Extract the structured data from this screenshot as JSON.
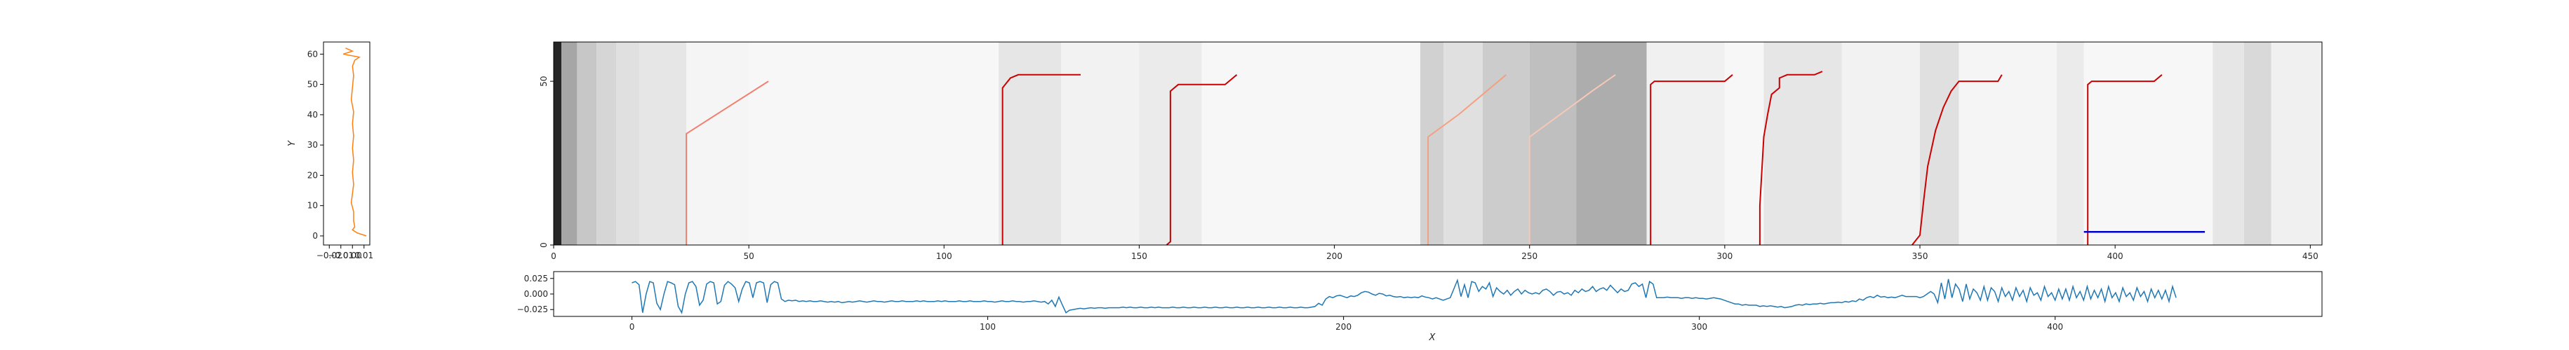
{
  "chart_data": [
    {
      "panel": "left-profile",
      "type": "line",
      "ylabel": "Y",
      "xlabel": "",
      "xlim": [
        -0.025,
        0.015
      ],
      "ylim": [
        -3,
        64
      ],
      "xticks": [
        -0.02,
        -0.01,
        0.0,
        0.01
      ],
      "xtick_labels": [
        "−0.02",
        "−0.01",
        "0.00",
        "0.01"
      ],
      "yticks": [
        0,
        10,
        20,
        30,
        40,
        50,
        60
      ],
      "color": "#ff7f0e",
      "points": [
        [
          0.012,
          0
        ],
        [
          0.004,
          1
        ],
        [
          0.0,
          2
        ],
        [
          0.002,
          3
        ],
        [
          0.001,
          5
        ],
        [
          0.001,
          8
        ],
        [
          -0.001,
          11
        ],
        [
          0.0,
          14
        ],
        [
          0.001,
          17
        ],
        [
          0.0,
          21
        ],
        [
          0.001,
          25
        ],
        [
          0.0,
          29
        ],
        [
          0.001,
          33
        ],
        [
          0.0,
          37
        ],
        [
          0.001,
          41
        ],
        [
          -0.001,
          45
        ],
        [
          0.0,
          49
        ],
        [
          0.001,
          53
        ],
        [
          0.0,
          56
        ],
        [
          0.002,
          58
        ],
        [
          0.006,
          59
        ],
        [
          -0.008,
          60
        ],
        [
          0.0,
          61
        ],
        [
          -0.006,
          62
        ]
      ]
    },
    {
      "panel": "main-heatmap",
      "type": "heatmap",
      "xlabel": "",
      "ylabel": "",
      "xlim": [
        0,
        453
      ],
      "ylim": [
        0,
        62
      ],
      "xticks": [
        0,
        50,
        100,
        150,
        200,
        250,
        300,
        350,
        400,
        450
      ],
      "yticks": [
        0,
        50
      ],
      "colormap": "greys",
      "bands": [
        {
          "x0": 0,
          "x1": 2,
          "v": 0.85
        },
        {
          "x0": 2,
          "x1": 6,
          "v": 0.35
        },
        {
          "x0": 6,
          "x1": 11,
          "v": 0.22
        },
        {
          "x0": 11,
          "x1": 16,
          "v": 0.16
        },
        {
          "x0": 16,
          "x1": 22,
          "v": 0.12
        },
        {
          "x0": 22,
          "x1": 34,
          "v": 0.1
        },
        {
          "x0": 34,
          "x1": 50,
          "v": 0.04
        },
        {
          "x0": 50,
          "x1": 114,
          "v": 0.03
        },
        {
          "x0": 114,
          "x1": 130,
          "v": 0.1
        },
        {
          "x0": 130,
          "x1": 150,
          "v": 0.05
        },
        {
          "x0": 150,
          "x1": 166,
          "v": 0.08
        },
        {
          "x0": 166,
          "x1": 222,
          "v": 0.03
        },
        {
          "x0": 222,
          "x1": 228,
          "v": 0.18
        },
        {
          "x0": 228,
          "x1": 238,
          "v": 0.12
        },
        {
          "x0": 238,
          "x1": 250,
          "v": 0.2
        },
        {
          "x0": 250,
          "x1": 262,
          "v": 0.25
        },
        {
          "x0": 262,
          "x1": 280,
          "v": 0.32
        },
        {
          "x0": 280,
          "x1": 300,
          "v": 0.06
        },
        {
          "x0": 300,
          "x1": 310,
          "v": 0.03
        },
        {
          "x0": 310,
          "x1": 330,
          "v": 0.1
        },
        {
          "x0": 330,
          "x1": 350,
          "v": 0.05
        },
        {
          "x0": 350,
          "x1": 360,
          "v": 0.12
        },
        {
          "x0": 360,
          "x1": 385,
          "v": 0.04
        },
        {
          "x0": 385,
          "x1": 392,
          "v": 0.08
        },
        {
          "x0": 392,
          "x1": 425,
          "v": 0.03
        },
        {
          "x0": 425,
          "x1": 433,
          "v": 0.1
        },
        {
          "x0": 433,
          "x1": 440,
          "v": 0.15
        },
        {
          "x0": 440,
          "x1": 453,
          "v": 0.06
        }
      ],
      "series": [
        {
          "color": "#f08070",
          "points": [
            [
              34,
              0
            ],
            [
              34,
              34
            ],
            [
              55,
              50
            ],
            [
              55,
              50
            ]
          ],
          "shape": "straight-diagonal"
        },
        {
          "color": "#cc0000",
          "points": [
            [
              115,
              0
            ],
            [
              115,
              48
            ],
            [
              117,
              51
            ],
            [
              119,
              52
            ],
            [
              135,
              52
            ]
          ]
        },
        {
          "color": "#cc0000",
          "points": [
            [
              157,
              0
            ],
            [
              158,
              1
            ],
            [
              158,
              47
            ],
            [
              160,
              49
            ],
            [
              172,
              49
            ],
            [
              174,
              51
            ],
            [
              175,
              52
            ]
          ]
        },
        {
          "color": "#f4a080",
          "points": [
            [
              224,
              0
            ],
            [
              224,
              33
            ],
            [
              232,
              40
            ],
            [
              240,
              48
            ],
            [
              244,
              52
            ]
          ],
          "shape": "fading"
        },
        {
          "color": "#f6c8b8",
          "points": [
            [
              250,
              0
            ],
            [
              250,
              33
            ],
            [
              258,
              40
            ],
            [
              266,
              47
            ],
            [
              272,
              52
            ]
          ],
          "shape": "fading"
        },
        {
          "color": "#cc0000",
          "points": [
            [
              281,
              0
            ],
            [
              281,
              49
            ],
            [
              282,
              50
            ],
            [
              300,
              50
            ],
            [
              302,
              52
            ]
          ]
        },
        {
          "color": "#cc0000",
          "points": [
            [
              309,
              0
            ],
            [
              309,
              12
            ],
            [
              310,
              33
            ],
            [
              311,
              40
            ],
            [
              312,
              46
            ],
            [
              314,
              48
            ],
            [
              314,
              51
            ],
            [
              316,
              52
            ],
            [
              323,
              52
            ],
            [
              325,
              53
            ]
          ]
        },
        {
          "color": "#cc0000",
          "points": [
            [
              348,
              0
            ],
            [
              350,
              3
            ],
            [
              351,
              14
            ],
            [
              352,
              24
            ],
            [
              354,
              35
            ],
            [
              356,
              42
            ],
            [
              358,
              47
            ],
            [
              360,
              50
            ],
            [
              370,
              50
            ],
            [
              371,
              52
            ]
          ]
        },
        {
          "color": "#cc0000",
          "points": [
            [
              393,
              0
            ],
            [
              393,
              49
            ],
            [
              394,
              50
            ],
            [
              410,
              50
            ],
            [
              412,
              52
            ]
          ]
        },
        {
          "color": "#0000cc",
          "points": [
            [
              392,
              4
            ],
            [
              423,
              4
            ]
          ]
        }
      ]
    },
    {
      "panel": "bottom-signal",
      "type": "line",
      "xlabel": "X",
      "ylabel": "",
      "xlim": [
        -22,
        475
      ],
      "ylim": [
        -0.036,
        0.036
      ],
      "xticks": [
        0,
        100,
        200,
        300,
        400
      ],
      "yticks": [
        0.025,
        0.0,
        -0.025
      ],
      "ytick_labels": [
        "0.025",
        "0.000",
        "−0.025"
      ],
      "color": "#1f77b4",
      "y": [
        0.018,
        0.02,
        0.015,
        -0.03,
        0.0,
        0.02,
        0.018,
        -0.015,
        -0.025,
        0.0,
        0.02,
        0.018,
        0.015,
        -0.02,
        -0.03,
        0.0,
        0.018,
        0.02,
        0.012,
        -0.018,
        -0.01,
        0.016,
        0.02,
        0.018,
        -0.016,
        -0.012,
        0.014,
        0.02,
        0.016,
        0.01,
        -0.012,
        0.008,
        0.02,
        0.018,
        -0.006,
        0.018,
        0.02,
        0.018,
        -0.014,
        0.015,
        0.02,
        0.018,
        -0.008,
        -0.012,
        -0.01,
        -0.011,
        -0.01,
        -0.012,
        -0.011,
        -0.012,
        -0.011,
        -0.012,
        -0.012,
        -0.011,
        -0.012,
        -0.013,
        -0.012,
        -0.013,
        -0.012,
        -0.014,
        -0.013,
        -0.012,
        -0.013,
        -0.012,
        -0.011,
        -0.012,
        -0.013,
        -0.012,
        -0.011,
        -0.012,
        -0.012,
        -0.013,
        -0.012,
        -0.011,
        -0.012,
        -0.012,
        -0.011,
        -0.012,
        -0.012,
        -0.012,
        -0.011,
        -0.012,
        -0.011,
        -0.012,
        -0.012,
        -0.012,
        -0.011,
        -0.012,
        -0.011,
        -0.012,
        -0.012,
        -0.012,
        -0.011,
        -0.012,
        -0.012,
        -0.011,
        -0.012,
        -0.012,
        -0.012,
        -0.011,
        -0.012,
        -0.012,
        -0.013,
        -0.012,
        -0.011,
        -0.012,
        -0.012,
        -0.011,
        -0.012,
        -0.012,
        -0.013,
        -0.012,
        -0.012,
        -0.011,
        -0.012,
        -0.013,
        -0.012,
        -0.016,
        -0.01,
        -0.02,
        -0.005,
        -0.018,
        -0.03,
        -0.026,
        -0.025,
        -0.024,
        -0.023,
        -0.024,
        -0.023,
        -0.022,
        -0.023,
        -0.022,
        -0.022,
        -0.023,
        -0.022,
        -0.022,
        -0.022,
        -0.022,
        -0.021,
        -0.022,
        -0.021,
        -0.022,
        -0.022,
        -0.021,
        -0.022,
        -0.022,
        -0.021,
        -0.022,
        -0.021,
        -0.022,
        -0.022,
        -0.022,
        -0.021,
        -0.022,
        -0.022,
        -0.021,
        -0.022,
        -0.022,
        -0.021,
        -0.022,
        -0.022,
        -0.021,
        -0.022,
        -0.022,
        -0.021,
        -0.022,
        -0.022,
        -0.021,
        -0.022,
        -0.022,
        -0.021,
        -0.022,
        -0.022,
        -0.021,
        -0.022,
        -0.022,
        -0.021,
        -0.022,
        -0.022,
        -0.021,
        -0.022,
        -0.022,
        -0.021,
        -0.022,
        -0.022,
        -0.021,
        -0.022,
        -0.022,
        -0.021,
        -0.022,
        -0.022,
        -0.021,
        -0.02,
        -0.015,
        -0.018,
        -0.008,
        -0.004,
        -0.006,
        -0.003,
        -0.002,
        -0.004,
        -0.006,
        -0.003,
        -0.004,
        -0.002,
        0.002,
        0.004,
        0.003,
        0.0,
        -0.002,
        0.001,
        0.0,
        -0.003,
        -0.002,
        -0.004,
        -0.005,
        -0.004,
        -0.006,
        -0.005,
        -0.006,
        -0.005,
        -0.006,
        -0.003,
        -0.005,
        -0.006,
        -0.008,
        -0.006,
        -0.008,
        -0.01,
        -0.008,
        -0.006,
        0.008,
        0.022,
        -0.004,
        0.015,
        -0.006,
        0.02,
        0.018,
        0.004,
        0.012,
        0.008,
        0.018,
        -0.004,
        0.01,
        0.004,
        0.0,
        0.006,
        -0.002,
        0.004,
        0.008,
        0.0,
        0.006,
        0.002,
        0.0,
        0.002,
        0.0,
        0.006,
        0.008,
        0.004,
        -0.002,
        0.003,
        0.004,
        0.0,
        0.002,
        -0.002,
        0.006,
        0.002,
        0.008,
        0.004,
        0.006,
        0.012,
        0.004,
        0.008,
        0.01,
        0.006,
        0.014,
        0.008,
        0.002,
        0.008,
        0.004,
        0.006,
        0.016,
        0.018,
        0.012,
        0.016,
        -0.006,
        0.02,
        0.016,
        -0.006,
        -0.006,
        -0.006,
        -0.005,
        -0.006,
        -0.006,
        -0.006,
        -0.007,
        -0.006,
        -0.006,
        -0.007,
        -0.006,
        -0.007,
        -0.007,
        -0.008,
        -0.007,
        -0.006,
        -0.007,
        -0.008,
        -0.01,
        -0.012,
        -0.014,
        -0.016,
        -0.016,
        -0.018,
        -0.017,
        -0.018,
        -0.018,
        -0.018,
        -0.02,
        -0.019,
        -0.02,
        -0.019,
        -0.02,
        -0.021,
        -0.02,
        -0.022,
        -0.021,
        -0.02,
        -0.018,
        -0.017,
        -0.018,
        -0.016,
        -0.017,
        -0.016,
        -0.016,
        -0.015,
        -0.016,
        -0.015,
        -0.014,
        -0.014,
        -0.013,
        -0.014,
        -0.012,
        -0.013,
        -0.011,
        -0.012,
        -0.008,
        -0.01,
        -0.006,
        -0.004,
        -0.006,
        -0.002,
        -0.005,
        -0.004,
        -0.006,
        -0.005,
        -0.006,
        -0.004,
        -0.002,
        -0.004,
        -0.004,
        -0.004,
        -0.004,
        -0.006,
        -0.004,
        0.0,
        0.004,
        0.0,
        -0.014,
        0.018,
        -0.008,
        0.024,
        -0.006,
        0.016,
        0.008,
        -0.012,
        0.016,
        -0.008,
        0.008,
        0.002,
        -0.01,
        0.012,
        -0.01,
        0.01,
        0.004,
        -0.012,
        0.01,
        -0.004,
        0.004,
        -0.01,
        0.01,
        -0.004,
        0.006,
        -0.012,
        0.01,
        -0.002,
        0.002,
        -0.01,
        0.012,
        -0.004,
        0.002,
        -0.01,
        0.008,
        -0.008,
        0.008,
        -0.01,
        0.012,
        -0.006,
        0.004,
        -0.01,
        0.012,
        -0.008,
        0.006,
        -0.006,
        0.008,
        -0.012,
        0.012,
        -0.006,
        0.002,
        -0.012,
        0.01,
        -0.004,
        0.002,
        -0.01,
        0.01,
        -0.004,
        0.004,
        -0.012,
        0.008,
        -0.006,
        0.006,
        -0.008,
        0.006,
        -0.012,
        0.012,
        -0.006
      ]
    }
  ]
}
